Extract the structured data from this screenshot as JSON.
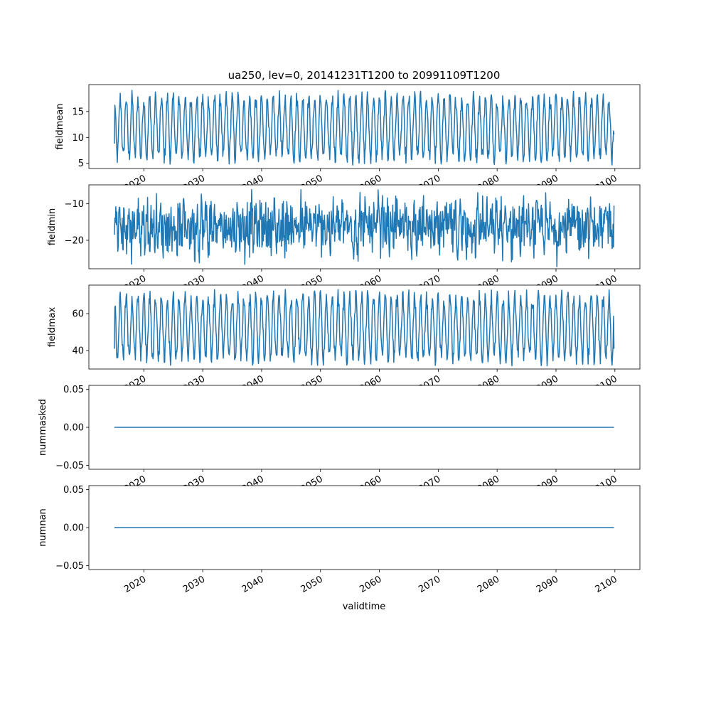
{
  "figure": {
    "title": "ua250, lev=0, 20141231T1200 to 20991109T1200",
    "xlabel": "validtime",
    "line_color": "#1f77b4"
  },
  "chart_data": {
    "type": "line",
    "title": "ua250, lev=0, 20141231T1200 to 20991109T1200",
    "xlabel": "validtime",
    "x_range": [
      "2014-12-31",
      "2099-11-09"
    ],
    "xlim": [
      "2010-09-01",
      "2104-04-01"
    ],
    "x_ticks": [
      "2020",
      "2030",
      "2040",
      "2050",
      "2060",
      "2070",
      "2080",
      "2090",
      "2100"
    ],
    "grid": false,
    "legend": "none",
    "panels": [
      {
        "ylabel": "fieldmean",
        "ylim": [
          4.0,
          20.2
        ],
        "y_ticks": [
          5,
          10,
          15
        ],
        "y_tick_labels": [
          "5",
          "10",
          "15"
        ],
        "series": [
          {
            "period_years": 1,
            "min": 4.6,
            "max": 19.2,
            "start": 8.8,
            "end": 10.6
          }
        ]
      },
      {
        "ylabel": "fieldmin",
        "ylim": [
          -27.8,
          -4.8
        ],
        "y_ticks": [
          -20,
          -10
        ],
        "y_tick_labels": [
          "−20",
          "−10"
        ],
        "series": [
          {
            "min": -27.3,
            "max": -5.3,
            "start": -18.5,
            "end": -10.5
          }
        ]
      },
      {
        "ylabel": "fieldmax",
        "ylim": [
          30.0,
          75.5
        ],
        "y_ticks": [
          40,
          60
        ],
        "y_tick_labels": [
          "40",
          "60"
        ],
        "series": [
          {
            "period_years": 1,
            "min": 31.5,
            "max": 73.5,
            "start": 41.0,
            "end": 41.0
          }
        ]
      },
      {
        "ylabel": "nummasked",
        "ylim": [
          -0.055,
          0.055
        ],
        "y_ticks": [
          -0.05,
          0.0,
          0.05
        ],
        "y_tick_labels": [
          "−0.05",
          "0.00",
          "0.05"
        ],
        "series": [
          {
            "constant": 0.0
          }
        ]
      },
      {
        "ylabel": "numnan",
        "ylim": [
          -0.055,
          0.055
        ],
        "y_ticks": [
          -0.05,
          0.0,
          0.05
        ],
        "y_tick_labels": [
          "−0.05",
          "0.00",
          "0.05"
        ],
        "series": [
          {
            "constant": 0.0
          }
        ]
      }
    ]
  }
}
